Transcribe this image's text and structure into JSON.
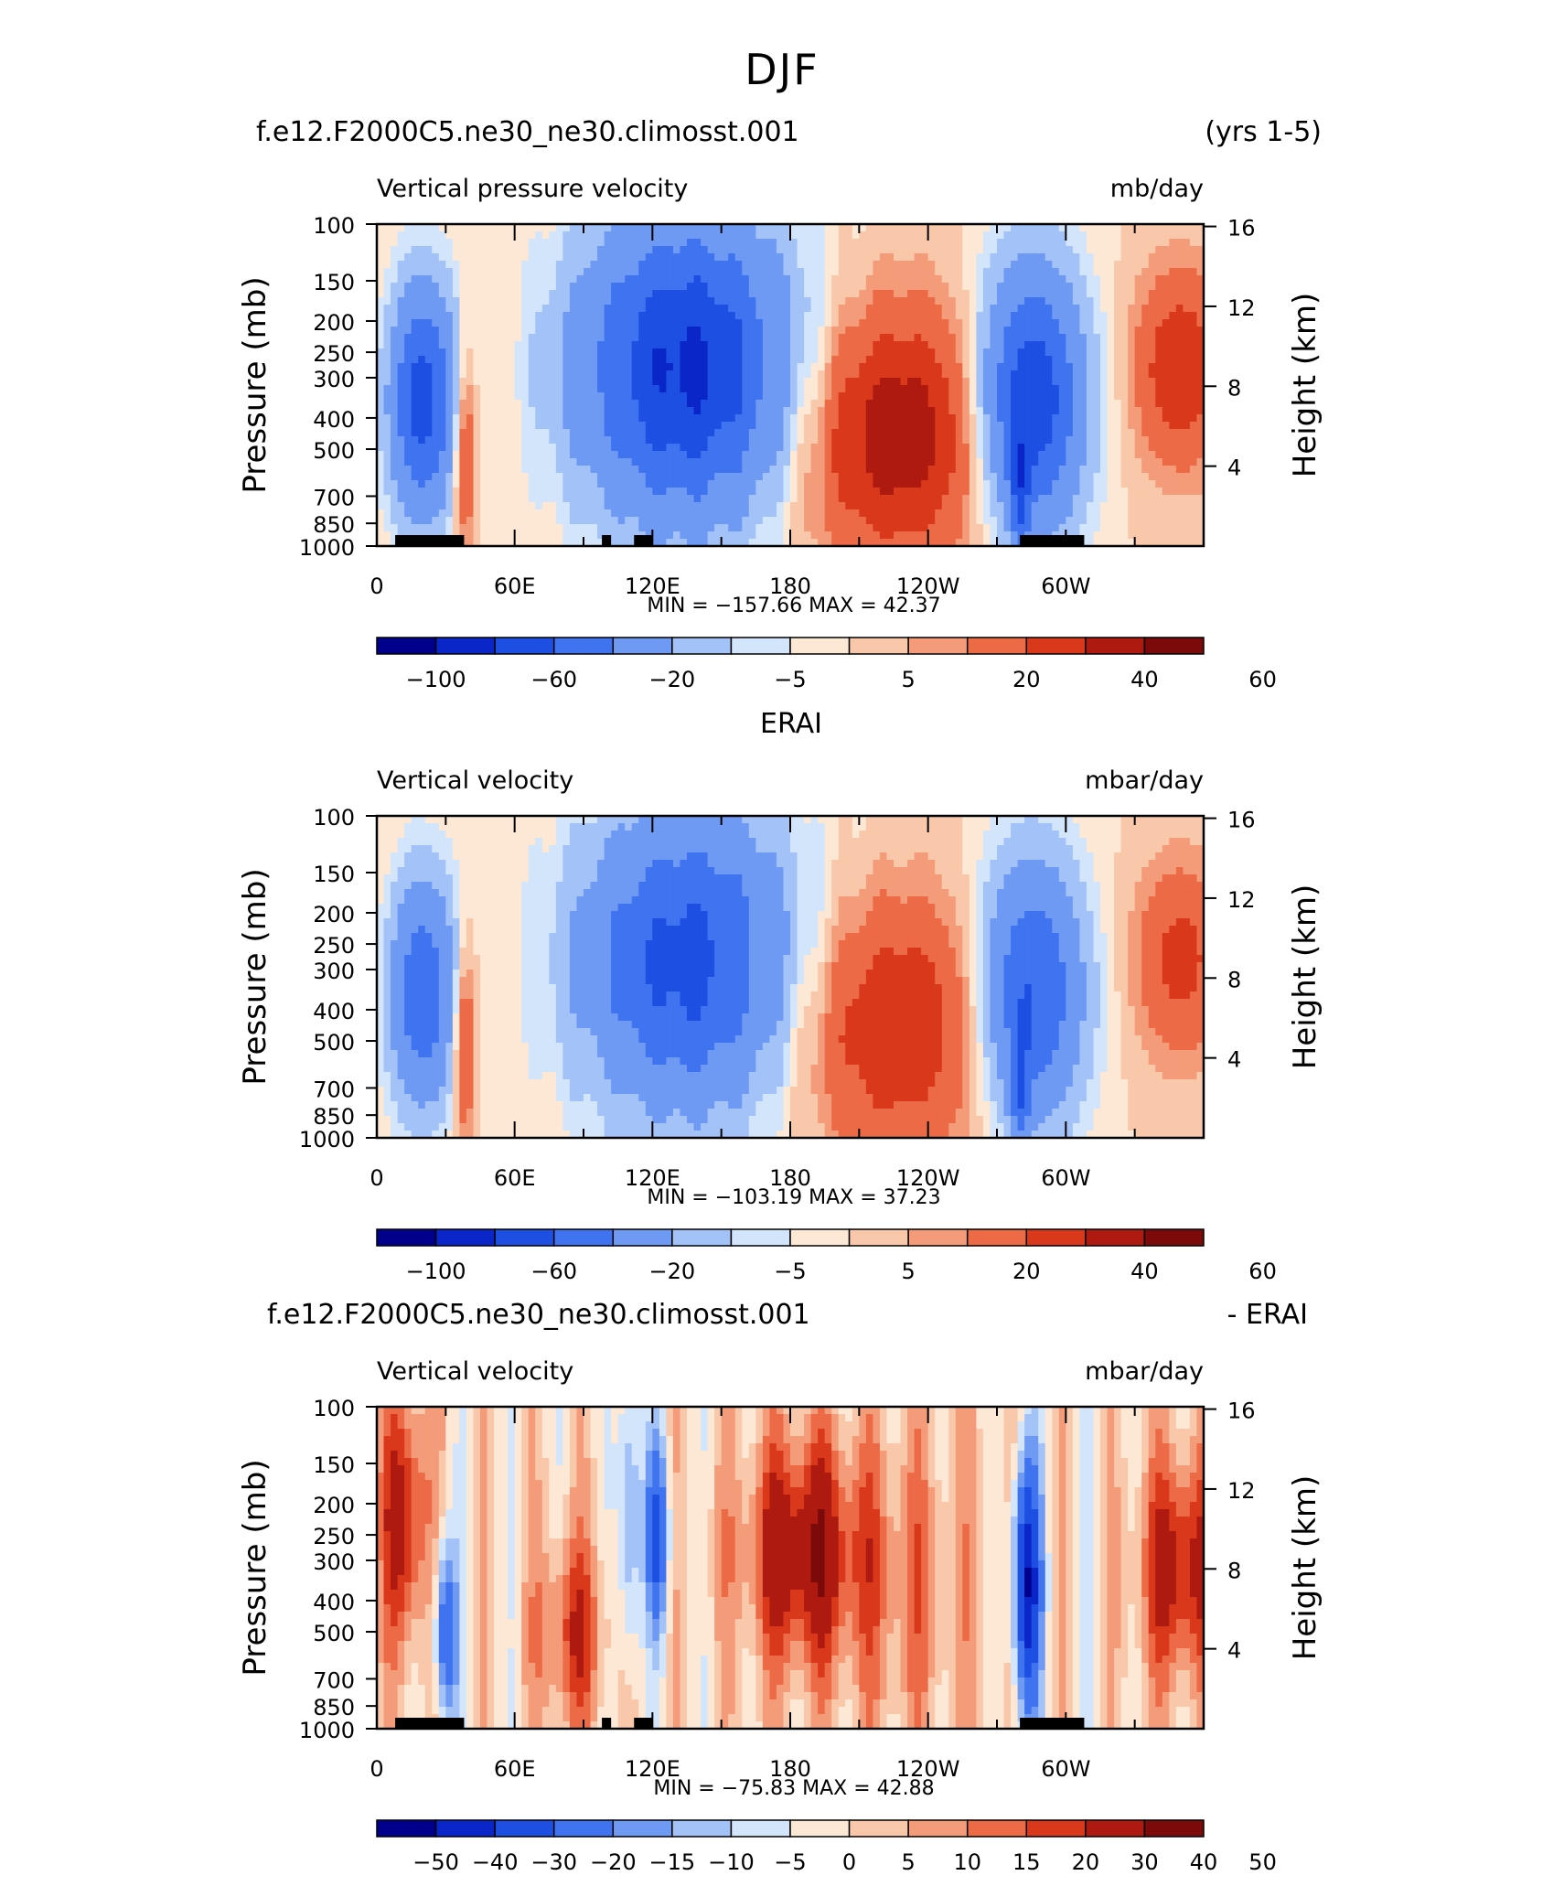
{
  "page_title": "DJF",
  "colors": {
    "full_field_scale": [
      "#00008c",
      "#0a25c8",
      "#1c4fe2",
      "#3f73ef",
      "#6f9af3",
      "#a3c2f7",
      "#d2e5fb",
      "#fde8d6",
      "#f9c8ab",
      "#f49c79",
      "#ec6a46",
      "#d9381b",
      "#ae1a0f",
      "#7d0a0a"
    ],
    "diff_scale": [
      "#00008c",
      "#0a25c8",
      "#1c4fe2",
      "#3f73ef",
      "#6f9af3",
      "#a3c2f7",
      "#d2e5fb",
      "#fde8d6",
      "#f9c8ab",
      "#f49c79",
      "#ec6a46",
      "#d9381b",
      "#ae1a0f",
      "#7d0a0a"
    ],
    "land": "#000000"
  },
  "panels": [
    {
      "left_title": "f.e12.F2000C5.ne30_ne30.climosst.001",
      "right_title": "(yrs 1-5)",
      "field_label": "Vertical pressure velocity",
      "units": "mb/day",
      "stats": "MIN = −157.66   MAX =   42.37",
      "colorbar_labels": [
        "−100",
        "−60",
        "−20",
        "−5",
        "5",
        "20",
        "40",
        "60"
      ]
    },
    {
      "left_title": "",
      "center_title": "ERAI",
      "right_title": "",
      "field_label": "Vertical velocity",
      "units": "mbar/day",
      "stats": "MIN = −103.19   MAX =   37.23",
      "colorbar_labels": [
        "−100",
        "−60",
        "−20",
        "−5",
        "5",
        "20",
        "40",
        "60"
      ]
    },
    {
      "left_title": "f.e12.F2000C5.ne30_ne30.climosst.001",
      "right_title": "- ERAI",
      "field_label": "Vertical velocity",
      "units": "mbar/day",
      "stats": "MIN = −75.83   MAX =   42.88",
      "colorbar_labels": [
        "−50",
        "−40",
        "−30",
        "−20",
        "−15",
        "−10",
        "−5",
        "0",
        "5",
        "10",
        "15",
        "20",
        "30",
        "40",
        "50"
      ]
    }
  ],
  "axes": {
    "ylabel_left": "Pressure (mb)",
    "ylabel_right": "Height (km)",
    "pressure_ticks": [
      100,
      150,
      200,
      250,
      300,
      400,
      500,
      700,
      850,
      1000
    ],
    "pressure_tick_labels": [
      "100",
      "150",
      "200",
      "250",
      "300",
      "400",
      "500",
      "700",
      "850",
      "1000"
    ],
    "height_ticks_km": [
      4,
      8,
      12,
      16
    ],
    "height_tick_labels": [
      "4",
      "8",
      "12",
      "16"
    ],
    "lon_ticks_deg": [
      0,
      60,
      120,
      180,
      240,
      300
    ],
    "lon_tick_labels": [
      "0",
      "60E",
      "120E",
      "180",
      "120W",
      "60W"
    ],
    "lon_range": [
      0,
      360
    ],
    "p_range": [
      100,
      1000
    ]
  },
  "chart_data": [
    {
      "type": "heatmap",
      "title": "f.e12.F2000C5.ne30_ne30.climosst.001 (yrs 1-5)",
      "variable": "Vertical pressure velocity",
      "units": "mb/day",
      "x": "longitude",
      "y": "pressure (mb)",
      "xlim": [
        0,
        360
      ],
      "ylim": [
        1000,
        100
      ],
      "min": -157.66,
      "max": 42.37,
      "levels": [
        -100,
        -80,
        -60,
        -40,
        -20,
        -10,
        -5,
        0,
        5,
        10,
        20,
        30,
        40,
        50,
        60
      ]
    },
    {
      "type": "heatmap",
      "title": "ERAI",
      "variable": "Vertical velocity",
      "units": "mbar/day",
      "x": "longitude",
      "y": "pressure (mb)",
      "xlim": [
        0,
        360
      ],
      "ylim": [
        1000,
        100
      ],
      "min": -103.19,
      "max": 37.23,
      "levels": [
        -100,
        -80,
        -60,
        -40,
        -20,
        -10,
        -5,
        0,
        5,
        10,
        20,
        30,
        40,
        50,
        60
      ]
    },
    {
      "type": "heatmap",
      "title": "f.e12.F2000C5.ne30_ne30.climosst.001 - ERAI",
      "variable": "Vertical velocity",
      "units": "mbar/day",
      "x": "longitude",
      "y": "pressure (mb)",
      "xlim": [
        0,
        360
      ],
      "ylim": [
        1000,
        100
      ],
      "min": -75.83,
      "max": 42.88,
      "levels": [
        -50,
        -40,
        -30,
        -20,
        -15,
        -10,
        -5,
        0,
        5,
        10,
        15,
        20,
        30,
        40,
        50
      ]
    }
  ]
}
